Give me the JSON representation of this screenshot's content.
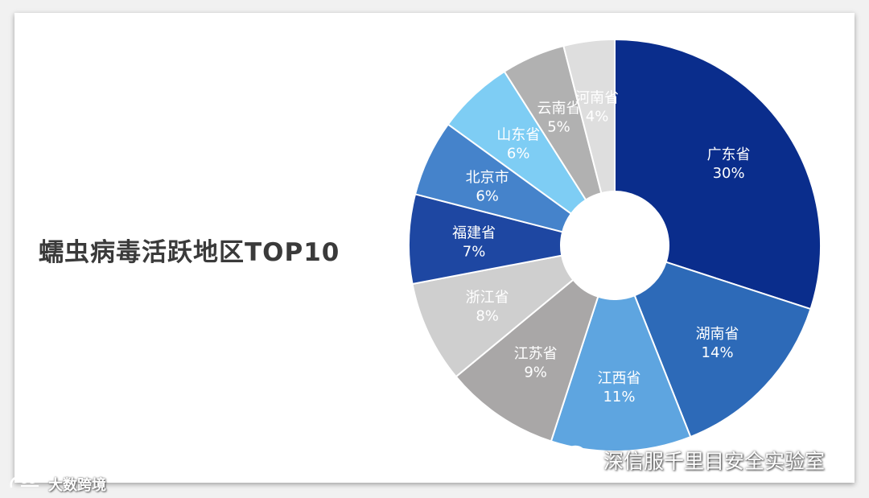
{
  "chart_data": {
    "type": "pie",
    "title": "蠕虫病毒活跃地区TOP10",
    "donut": true,
    "slices": [
      {
        "label": "广东省",
        "value": 30,
        "value_label": "30%",
        "color": "#0a2d8c",
        "text_color": "#ffffff"
      },
      {
        "label": "湖南省",
        "value": 14,
        "value_label": "14%",
        "color": "#2d6ab8",
        "text_color": "#ffffff"
      },
      {
        "label": "江西省",
        "value": 11,
        "value_label": "11%",
        "color": "#5ea5e0",
        "text_color": "#ffffff"
      },
      {
        "label": "江苏省",
        "value": 9,
        "value_label": "9%",
        "color": "#a9a7a7",
        "text_color": "#ffffff"
      },
      {
        "label": "浙江省",
        "value": 8,
        "value_label": "8%",
        "color": "#cfcfcf",
        "text_color": "#ffffff"
      },
      {
        "label": "福建省",
        "value": 7,
        "value_label": "7%",
        "color": "#1e47a2",
        "text_color": "#ffffff"
      },
      {
        "label": "北京市",
        "value": 6,
        "value_label": "6%",
        "color": "#4583cb",
        "text_color": "#ffffff"
      },
      {
        "label": "山东省",
        "value": 6,
        "value_label": "6%",
        "color": "#7ecdf4",
        "text_color": "#ffffff"
      },
      {
        "label": "云南省",
        "value": 5,
        "value_label": "5%",
        "color": "#b1b1b1",
        "text_color": "#ffffff"
      },
      {
        "label": "河南省",
        "value": 4,
        "value_label": "4%",
        "color": "#dedede",
        "text_color": "#ffffff"
      }
    ]
  },
  "watermarks": {
    "bottom_left": "大数跨境",
    "bottom_right": "深信服千里目安全实验室"
  }
}
